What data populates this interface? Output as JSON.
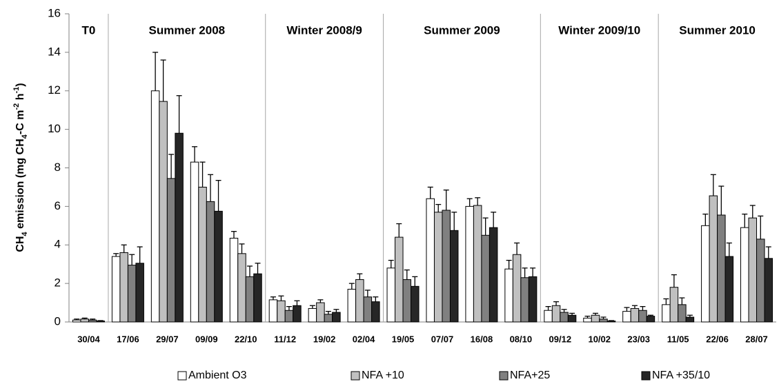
{
  "chart_data": {
    "type": "bar",
    "y_label": [
      {
        "text": "CH"
      },
      {
        "text": "4",
        "shift": "sub"
      },
      {
        "text": " emission (mg CH"
      },
      {
        "text": "4",
        "shift": "sub"
      },
      {
        "text": "-C m"
      },
      {
        "text": "-2",
        "shift": "super"
      },
      {
        "text": " h"
      },
      {
        "text": "-1",
        "shift": "super"
      },
      {
        "text": ")"
      }
    ],
    "categories": [
      "30/04",
      "17/06",
      "29/07",
      "09/09",
      "22/10",
      "11/12",
      "19/02",
      "02/04",
      "19/05",
      "07/07",
      "16/08",
      "08/10",
      "09/12",
      "10/02",
      "23/03",
      "11/05",
      "22/06",
      "28/07"
    ],
    "periods": [
      {
        "name": "T0",
        "start": "30/04"
      },
      {
        "name": "Summer 2008",
        "start": "17/06"
      },
      {
        "name": "Winter 2008/9",
        "start": "11/12"
      },
      {
        "name": "Summer 2009",
        "start": "19/05"
      },
      {
        "name": "Winter 2009/10",
        "start": "09/12"
      },
      {
        "name": "Summer 2010",
        "start": "11/05"
      }
    ],
    "series": [
      {
        "name": "Ambient O3",
        "color": "#ffffff",
        "values": [
          0.1,
          3.4,
          12.0,
          8.3,
          4.35,
          1.15,
          0.7,
          1.7,
          2.8,
          6.4,
          6.0,
          2.75,
          0.6,
          0.2,
          0.55,
          0.9,
          5.0,
          4.9
        ],
        "errors": [
          0.05,
          0.15,
          2.0,
          0.8,
          0.35,
          0.15,
          0.15,
          0.3,
          0.4,
          0.6,
          0.4,
          0.45,
          0.2,
          0.1,
          0.2,
          0.3,
          0.6,
          0.7
        ]
      },
      {
        "name": "NFA +10",
        "color": "#c0c0c0",
        "values": [
          0.15,
          3.6,
          11.45,
          7.0,
          3.55,
          1.1,
          1.0,
          2.2,
          4.4,
          5.7,
          6.05,
          3.5,
          0.85,
          0.35,
          0.7,
          1.8,
          6.55,
          5.4
        ],
        "errors": [
          0.05,
          0.4,
          2.15,
          1.3,
          0.5,
          0.25,
          0.15,
          0.3,
          0.7,
          0.4,
          0.4,
          0.6,
          0.2,
          0.1,
          0.15,
          0.65,
          1.1,
          0.65
        ]
      },
      {
        "name": "NFA+25",
        "color": "#808080",
        "values": [
          0.1,
          2.95,
          7.45,
          6.25,
          2.35,
          0.6,
          0.4,
          1.3,
          2.2,
          5.8,
          4.5,
          2.3,
          0.5,
          0.15,
          0.6,
          0.9,
          5.55,
          4.3
        ],
        "errors": [
          0.05,
          0.55,
          1.25,
          1.4,
          0.55,
          0.2,
          0.15,
          0.35,
          0.5,
          1.05,
          0.9,
          0.5,
          0.15,
          0.1,
          0.2,
          0.35,
          1.5,
          1.2
        ]
      },
      {
        "name": "NFA +35/10",
        "color": "#262626",
        "values": [
          0.05,
          3.05,
          9.8,
          5.75,
          2.5,
          0.85,
          0.5,
          1.05,
          1.85,
          4.75,
          4.9,
          2.35,
          0.35,
          0.05,
          0.3,
          0.25,
          3.4,
          3.3
        ],
        "errors": [
          0.02,
          0.85,
          1.95,
          1.6,
          0.55,
          0.25,
          0.15,
          0.25,
          0.5,
          0.95,
          0.8,
          0.45,
          0.1,
          0.02,
          0.05,
          0.1,
          0.7,
          0.6
        ]
      }
    ],
    "ylim": [
      0,
      16
    ],
    "yticks": [
      0,
      2,
      4,
      6,
      8,
      10,
      12,
      14,
      16
    ],
    "grid": false,
    "legend": "bottom"
  }
}
